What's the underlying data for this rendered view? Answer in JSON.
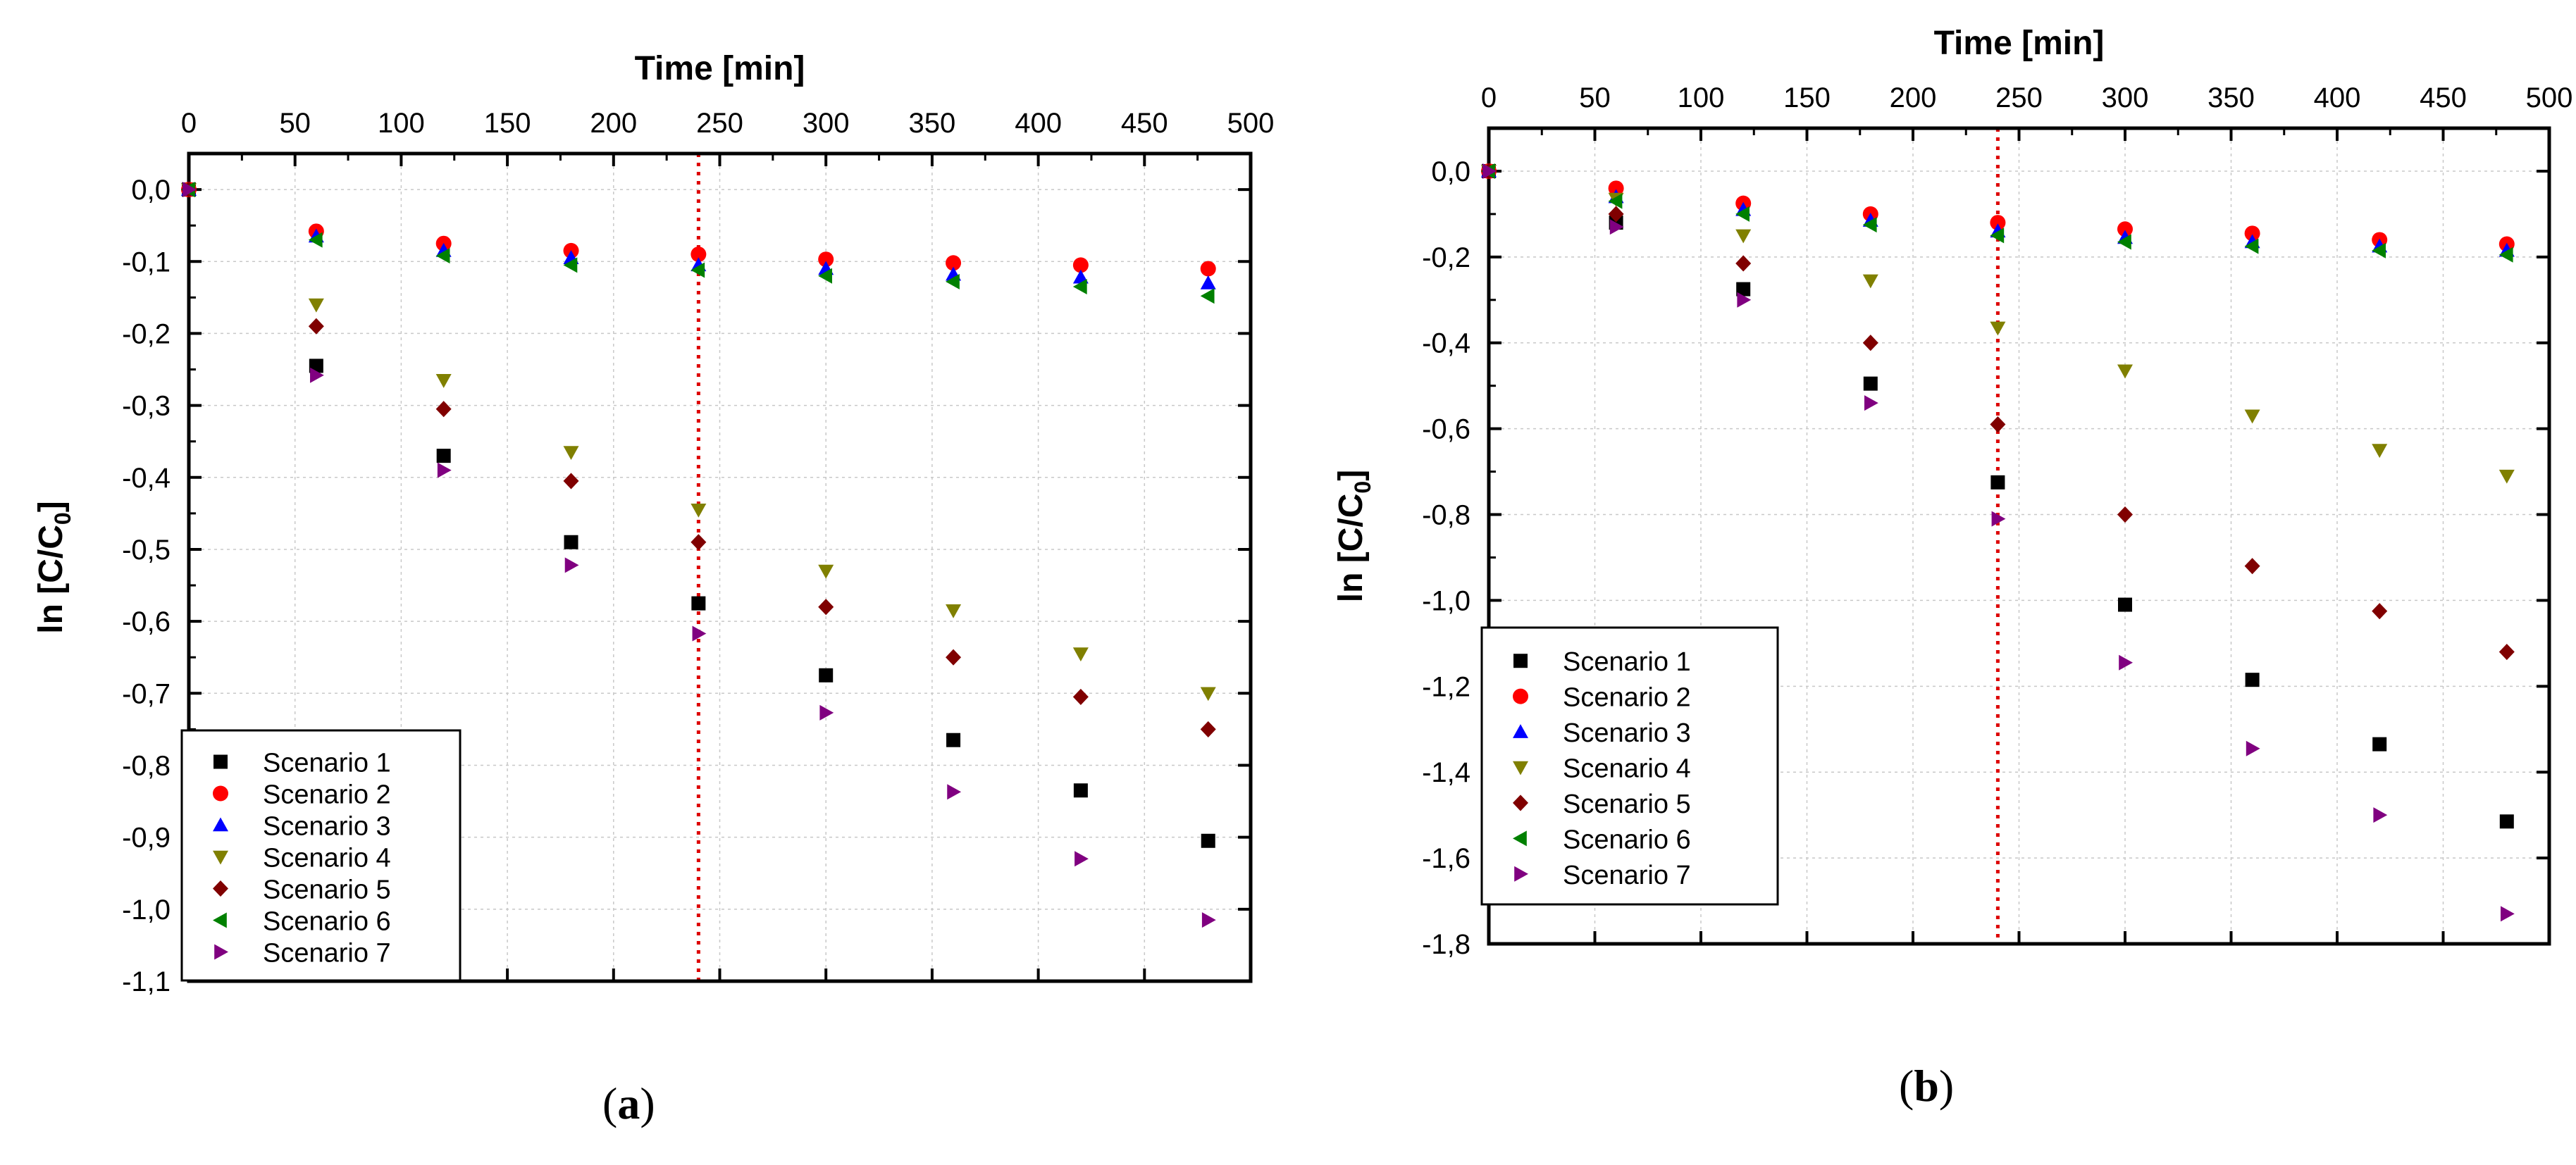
{
  "figure": {
    "panel_a_label": "a",
    "panel_b_label": "b",
    "paren_open": "(",
    "paren_close": ")"
  },
  "colors": {
    "s1": "#000000",
    "s2": "#ff0000",
    "s3": "#0000ff",
    "s4": "#808000",
    "s5": "#800000",
    "s6": "#008000",
    "s7": "#800080",
    "refline": "#dd0000",
    "grid": "#c8c8c8"
  },
  "chart_data": [
    {
      "type": "scatter",
      "panel": "a",
      "xlabel": "Time [min]",
      "ylabel": "ln [C/C0]",
      "xlim": [
        0,
        500
      ],
      "ylim": [
        -1.1,
        0.05
      ],
      "xticks": [
        0,
        50,
        100,
        150,
        200,
        250,
        300,
        350,
        400,
        450,
        500
      ],
      "xtick_labels": [
        "0",
        "50",
        "100",
        "150",
        "200",
        "250",
        "300",
        "350",
        "400",
        "450",
        "500"
      ],
      "yticks": [
        0.0,
        -0.1,
        -0.2,
        -0.3,
        -0.4,
        -0.5,
        -0.6,
        -0.7,
        -0.8,
        -0.9,
        -1.0,
        -1.1
      ],
      "ytick_labels": [
        "0,0",
        "-0,1",
        "-0,2",
        "-0,3",
        "-0,4",
        "-0,5",
        "-0,6",
        "-0,7",
        "-0,8",
        "-0,9",
        "-1,0",
        "-1,1"
      ],
      "vline": 240,
      "legend_position": "bottom-left",
      "x": [
        0,
        60,
        120,
        180,
        240,
        300,
        360,
        420,
        480
      ],
      "series": [
        {
          "name": "Scenario 1",
          "marker": "square",
          "color": "#000000",
          "values": [
            0,
            -0.245,
            -0.37,
            -0.49,
            -0.575,
            -0.675,
            -0.765,
            -0.835,
            -0.905
          ]
        },
        {
          "name": "Scenario 2",
          "marker": "circle",
          "color": "#ff0000",
          "values": [
            0,
            -0.058,
            -0.075,
            -0.085,
            -0.09,
            -0.097,
            -0.102,
            -0.105,
            -0.11
          ]
        },
        {
          "name": "Scenario 3",
          "marker": "triangle-up",
          "color": "#0000ff",
          "values": [
            0,
            -0.065,
            -0.085,
            -0.095,
            -0.105,
            -0.11,
            -0.118,
            -0.122,
            -0.13
          ]
        },
        {
          "name": "Scenario 4",
          "marker": "triangle-down",
          "color": "#808000",
          "values": [
            0,
            -0.16,
            -0.265,
            -0.365,
            -0.445,
            -0.53,
            -0.585,
            -0.645,
            -0.7
          ]
        },
        {
          "name": "Scenario 5",
          "marker": "diamond",
          "color": "#800000",
          "values": [
            0,
            -0.19,
            -0.305,
            -0.405,
            -0.49,
            -0.58,
            -0.65,
            -0.705,
            -0.75
          ]
        },
        {
          "name": "Scenario 6",
          "marker": "triangle-left",
          "color": "#008000",
          "values": [
            0,
            -0.07,
            -0.092,
            -0.105,
            -0.112,
            -0.12,
            -0.128,
            -0.135,
            -0.148
          ]
        },
        {
          "name": "Scenario 7",
          "marker": "triangle-right",
          "color": "#800080",
          "values": [
            0,
            -0.258,
            -0.39,
            -0.522,
            -0.617,
            -0.727,
            -0.837,
            -0.93,
            -1.015
          ]
        }
      ]
    },
    {
      "type": "scatter",
      "panel": "b",
      "xlabel": "Time [min]",
      "ylabel": "ln [C/C0]",
      "xlim": [
        0,
        500
      ],
      "ylim": [
        -1.8,
        0.1
      ],
      "xticks": [
        0,
        50,
        100,
        150,
        200,
        250,
        300,
        350,
        400,
        450,
        500
      ],
      "xtick_labels": [
        "0",
        "50",
        "100",
        "150",
        "200",
        "250",
        "300",
        "350",
        "400",
        "450",
        "500"
      ],
      "yticks": [
        0.0,
        -0.2,
        -0.4,
        -0.6,
        -0.8,
        -1.0,
        -1.2,
        -1.4,
        -1.6,
        -1.8
      ],
      "ytick_labels": [
        "0,0",
        "-0,2",
        "-0,4",
        "-0,6",
        "-0,8",
        "-1,0",
        "-1,2",
        "-1,4",
        "-1,6",
        "-1,8"
      ],
      "vline": 240,
      "legend_position": "bottom-left",
      "x": [
        0,
        60,
        120,
        180,
        240,
        300,
        360,
        420,
        480
      ],
      "series": [
        {
          "name": "Scenario 1",
          "marker": "square",
          "color": "#000000",
          "values": [
            0,
            -0.12,
            -0.275,
            -0.495,
            -0.725,
            -1.01,
            -1.185,
            -1.335,
            -1.515
          ]
        },
        {
          "name": "Scenario 2",
          "marker": "circle",
          "color": "#ff0000",
          "values": [
            0,
            -0.04,
            -0.075,
            -0.1,
            -0.12,
            -0.135,
            -0.145,
            -0.16,
            -0.17
          ]
        },
        {
          "name": "Scenario 3",
          "marker": "triangle-up",
          "color": "#0000ff",
          "values": [
            0,
            -0.06,
            -0.09,
            -0.115,
            -0.14,
            -0.155,
            -0.165,
            -0.175,
            -0.185
          ]
        },
        {
          "name": "Scenario 4",
          "marker": "triangle-down",
          "color": "#808000",
          "values": [
            0,
            -0.065,
            -0.15,
            -0.255,
            -0.365,
            -0.465,
            -0.57,
            -0.65,
            -0.71
          ]
        },
        {
          "name": "Scenario 5",
          "marker": "diamond",
          "color": "#800000",
          "values": [
            0,
            -0.1,
            -0.215,
            -0.4,
            -0.59,
            -0.8,
            -0.92,
            -1.025,
            -1.12
          ]
        },
        {
          "name": "Scenario 6",
          "marker": "triangle-left",
          "color": "#008000",
          "values": [
            0,
            -0.07,
            -0.1,
            -0.125,
            -0.15,
            -0.165,
            -0.175,
            -0.185,
            -0.195
          ]
        },
        {
          "name": "Scenario 7",
          "marker": "triangle-right",
          "color": "#800080",
          "values": [
            0,
            -0.13,
            -0.3,
            -0.54,
            -0.81,
            -1.145,
            -1.345,
            -1.5,
            -1.73
          ]
        }
      ]
    }
  ]
}
